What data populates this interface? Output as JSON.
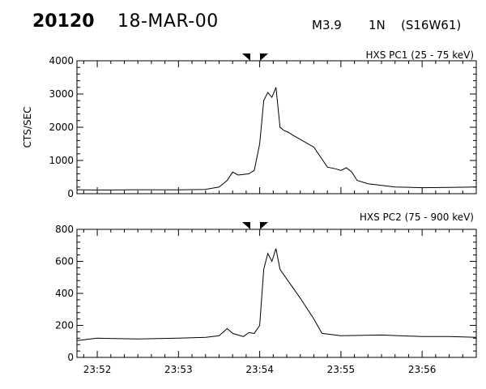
{
  "header": {
    "event_id": "20120",
    "date": "18-MAR-00",
    "flare_class": "M3.9",
    "optical_class": "1N",
    "location": "(S16W61)"
  },
  "x_ticks": [
    "23:52",
    "23:53",
    "23:54",
    "23:55",
    "23:56"
  ],
  "chart_data": [
    {
      "type": "line",
      "title": "HXS PC1 (25 - 75 keV)",
      "ylabel": "CTS/SEC",
      "xlim": [
        "23:51:45",
        "23:56:40"
      ],
      "ylim": [
        0,
        4000
      ],
      "yticks": [
        0,
        1000,
        2000,
        3000,
        4000
      ],
      "series": [
        {
          "x": [
            "23:51:45",
            "23:52:00",
            "23:52:30",
            "23:53:00",
            "23:53:20",
            "23:53:30",
            "23:53:36",
            "23:53:40",
            "23:53:44",
            "23:53:48",
            "23:53:52",
            "23:53:56",
            "23:54:00",
            "23:54:03",
            "23:54:06",
            "23:54:09",
            "23:54:12",
            "23:54:15",
            "23:54:18",
            "23:54:21",
            "23:54:25",
            "23:54:40",
            "23:54:50",
            "23:54:56",
            "23:55:00",
            "23:55:04",
            "23:55:08",
            "23:55:12",
            "23:55:20",
            "23:55:30",
            "23:55:40",
            "23:56:00",
            "23:56:20",
            "23:56:40"
          ],
          "y": [
            120,
            110,
            120,
            115,
            130,
            200,
            400,
            650,
            560,
            580,
            600,
            700,
            1500,
            2800,
            3050,
            2900,
            3200,
            2000,
            1900,
            1850,
            1750,
            1400,
            800,
            750,
            700,
            780,
            650,
            400,
            300,
            250,
            200,
            180,
            190,
            200
          ]
        }
      ]
    },
    {
      "type": "line",
      "title": "HXS PC2 (75 - 900 keV)",
      "ylabel": "",
      "xlim": [
        "23:51:45",
        "23:56:40"
      ],
      "ylim": [
        0,
        800
      ],
      "yticks": [
        0,
        200,
        400,
        600,
        800
      ],
      "series": [
        {
          "x": [
            "23:51:45",
            "23:52:00",
            "23:52:30",
            "23:53:00",
            "23:53:20",
            "23:53:30",
            "23:53:36",
            "23:53:40",
            "23:53:44",
            "23:53:48",
            "23:53:52",
            "23:53:56",
            "23:54:00",
            "23:54:03",
            "23:54:06",
            "23:54:09",
            "23:54:12",
            "23:54:15",
            "23:54:30",
            "23:54:40",
            "23:54:46",
            "23:55:00",
            "23:55:30",
            "23:56:00",
            "23:56:20",
            "23:56:40"
          ],
          "y": [
            105,
            120,
            115,
            120,
            125,
            135,
            180,
            150,
            140,
            130,
            155,
            150,
            200,
            550,
            650,
            600,
            680,
            550,
            370,
            240,
            150,
            135,
            140,
            130,
            130,
            125
          ]
        }
      ]
    }
  ]
}
